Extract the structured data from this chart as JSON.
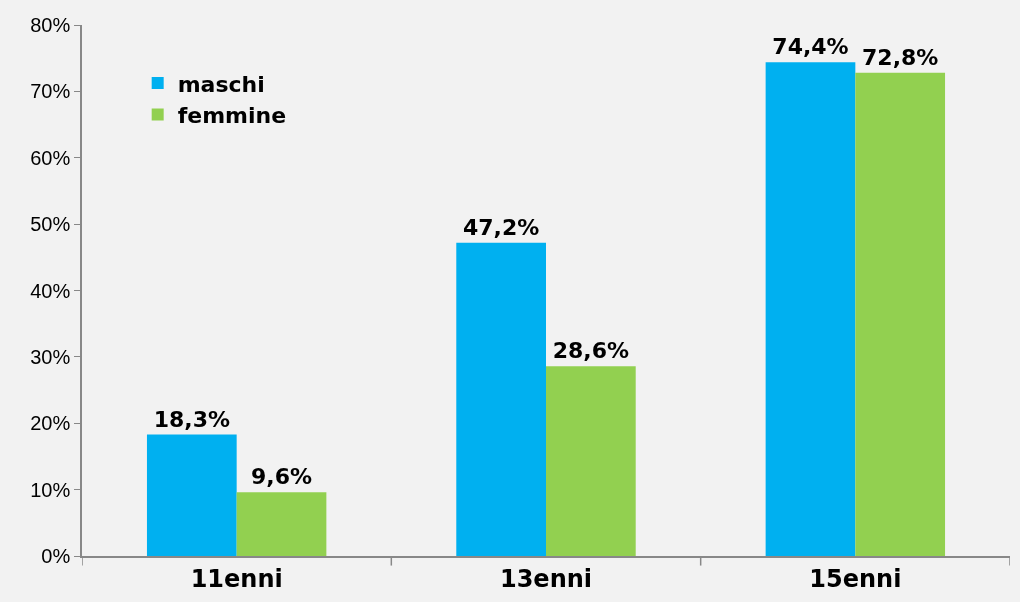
{
  "chart_data": {
    "type": "bar",
    "categories": [
      "11enni",
      "13enni",
      "15enni"
    ],
    "series": [
      {
        "name": "maschi",
        "color": "#00b0f0",
        "values": [
          18.3,
          47.2,
          74.4
        ],
        "value_labels": [
          "18,3%",
          "47,2%",
          "74,4%"
        ]
      },
      {
        "name": "femmine",
        "color": "#92d050",
        "values": [
          9.6,
          28.6,
          72.8
        ],
        "value_labels": [
          "9,6%",
          "28,6%",
          "72,8%"
        ]
      }
    ],
    "ylim": [
      0,
      80
    ],
    "yticks": [
      {
        "value": 0,
        "label": "0%"
      },
      {
        "value": 10,
        "label": "10%"
      },
      {
        "value": 20,
        "label": "20%"
      },
      {
        "value": 30,
        "label": "30%"
      },
      {
        "value": 40,
        "label": "40%"
      },
      {
        "value": 50,
        "label": "50%"
      },
      {
        "value": 60,
        "label": "60%"
      },
      {
        "value": 70,
        "label": "70%"
      },
      {
        "value": 80,
        "label": "80%"
      }
    ],
    "grid": false,
    "legend": "top left"
  }
}
